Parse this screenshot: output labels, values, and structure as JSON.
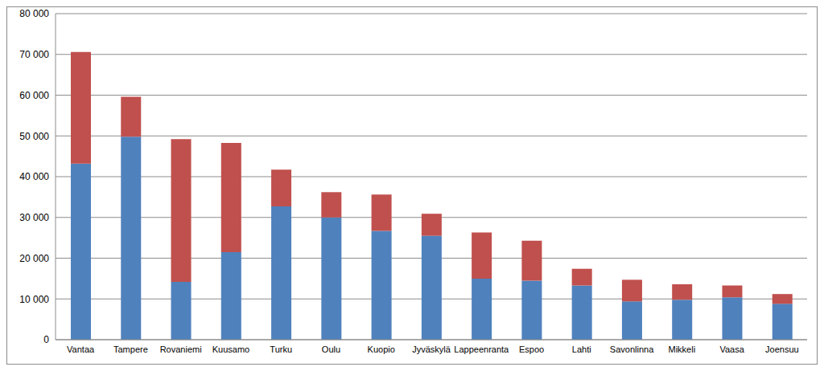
{
  "chart_data": {
    "type": "bar",
    "stacked": true,
    "grid": true,
    "categories": [
      "Vantaa",
      "Tampere",
      "Rovaniemi",
      "Kuusamo",
      "Turku",
      "Oulu",
      "Kuopio",
      "Jyväskylä",
      "Lappeenranta",
      "Espoo",
      "Lahti",
      "Savonlinna",
      "Mikkeli",
      "Vaasa",
      "Joensuu"
    ],
    "series": [
      {
        "color": "#4f81bd",
        "values": [
          43200,
          49800,
          14200,
          21500,
          32700,
          30000,
          26700,
          25500,
          15000,
          14500,
          13300,
          9400,
          9800,
          10400,
          8800
        ]
      },
      {
        "color": "#c0504d",
        "values": [
          27400,
          9800,
          35000,
          26800,
          9000,
          6200,
          8900,
          5400,
          11300,
          9800,
          4100,
          5300,
          3800,
          2900,
          2400
        ]
      }
    ],
    "ylim": [
      0,
      80000
    ],
    "yticks": [
      0,
      {
        "value": 10000,
        "label": "10 000"
      },
      {
        "value": 20000,
        "label": "20 000"
      },
      {
        "value": 30000,
        "label": "30 000"
      },
      {
        "value": 40000,
        "label": "40 000"
      },
      {
        "value": 50000,
        "label": "50 000"
      },
      {
        "value": 60000,
        "label": "60 000"
      },
      {
        "value": 70000,
        "label": "70 000"
      },
      {
        "value": 80000,
        "label": "80 000"
      }
    ]
  }
}
